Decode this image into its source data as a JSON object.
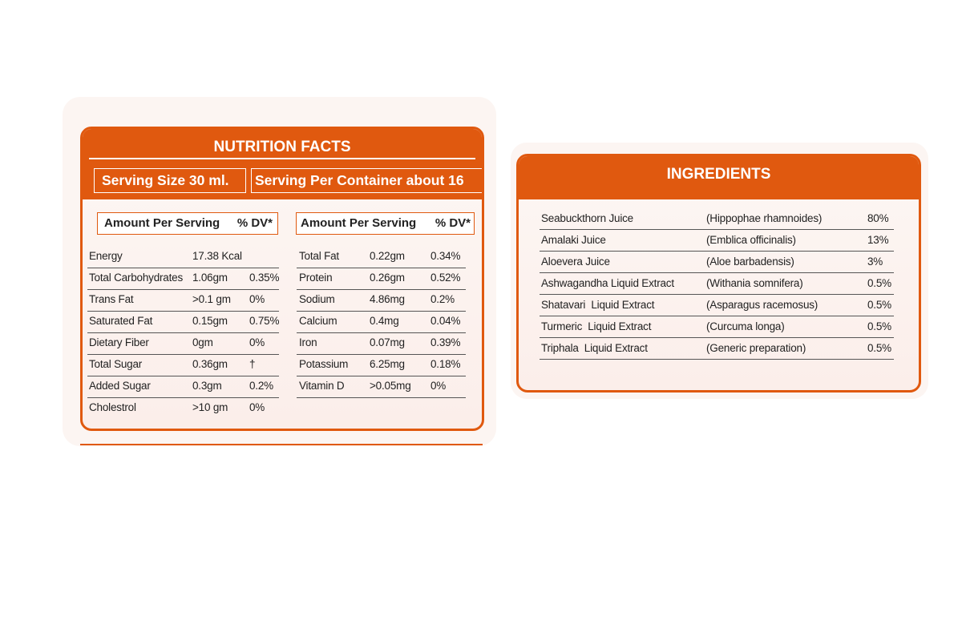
{
  "nutrition": {
    "title": "NUTRITION FACTS",
    "serving_size": "Serving Size 30 ml.",
    "serving_per_container": "Serving Per Container about 16",
    "left_column": {
      "amount_label": "Amount Per Serving",
      "dv_label": "% DV*",
      "rows": [
        {
          "name": "Energy",
          "amount": "17.38 Kcal",
          "dv": ""
        },
        {
          "name": "Total Carbohydrates",
          "amount": "1.06gm",
          "dv": "0.35%"
        },
        {
          "name": "Trans Fat",
          "amount": ">0.1 gm",
          "dv": "0%"
        },
        {
          "name": "Saturated Fat",
          "amount": "0.15gm",
          "dv": "0.75%"
        },
        {
          "name": "Dietary Fiber",
          "amount": "0gm",
          "dv": "0%"
        },
        {
          "name": "Total Sugar",
          "amount": "0.36gm",
          "dv": "†"
        },
        {
          "name": "Added Sugar",
          "amount": "0.3gm",
          "dv": "0.2%"
        },
        {
          "name": "Cholestrol",
          "amount": ">10 gm",
          "dv": "0%"
        }
      ]
    },
    "right_column": {
      "amount_label": "Amount Per Serving",
      "dv_label": "% DV*",
      "rows": [
        {
          "name": "Total Fat",
          "amount": "0.22gm",
          "dv": "0.34%"
        },
        {
          "name": "Protein",
          "amount": "0.26gm",
          "dv": "0.52%"
        },
        {
          "name": "Sodium",
          "amount": "4.86mg",
          "dv": "0.2%"
        },
        {
          "name": "Calcium",
          "amount": "0.4mg",
          "dv": "0.04%"
        },
        {
          "name": "Iron",
          "amount": "0.07mg",
          "dv": "0.39%"
        },
        {
          "name": "Potassium",
          "amount": "6.25mg",
          "dv": "0.18%"
        },
        {
          "name": "Vitamin D",
          "amount": ">0.05mg",
          "dv": "0%"
        }
      ]
    }
  },
  "ingredients": {
    "title": "INGREDIENTS",
    "rows": [
      {
        "name": "Seabuckthorn Juice",
        "botanical": "(Hippophae rhamnoides)",
        "percent": "80%"
      },
      {
        "name": "Amalaki Juice",
        "botanical": "(Emblica officinalis)",
        "percent": "13%"
      },
      {
        "name": "Aloevera Juice",
        "botanical": "(Aloe barbadensis)",
        "percent": "3%"
      },
      {
        "name": "Ashwagandha Liquid Extract",
        "botanical": "(Withania somnifera)",
        "percent": "0.5%"
      },
      {
        "name": "Shatavari  Liquid Extract",
        "botanical": "(Asparagus racemosus)",
        "percent": "0.5%"
      },
      {
        "name": "Turmeric  Liquid Extract",
        "botanical": "(Curcuma longa)",
        "percent": "0.5%"
      },
      {
        "name": "Triphala  Liquid Extract",
        "botanical": "(Generic preparation)",
        "percent": "0.5%"
      }
    ]
  },
  "colors": {
    "accent": "#e0590f",
    "panel": "#fcf5f2"
  }
}
